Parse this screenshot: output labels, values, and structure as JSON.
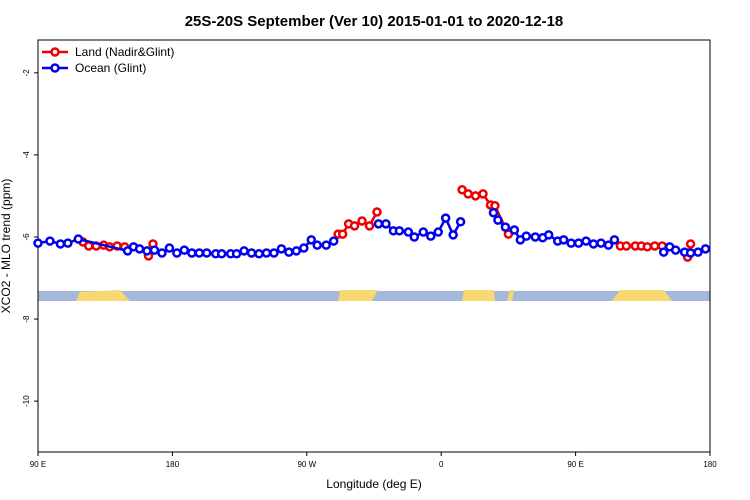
{
  "chart_data": {
    "type": "line",
    "title": "25S-20S September (Ver 10)   2015-01-01 to 2020-12-18",
    "x_label": "Longitude (deg E)",
    "y_label": "XCO2 - MLO trend (ppm)",
    "xlim": [
      90,
      540
    ],
    "ylim": [
      -11.24,
      -1.2
    ],
    "xticks": [
      {
        "value": 90,
        "label": "90 E"
      },
      180,
      {
        "value": 270,
        "label": "90 W"
      },
      {
        "value": 360,
        "label": "0"
      },
      {
        "value": 450,
        "label": "90 E"
      },
      {
        "value": 540,
        "label": "180"
      }
    ],
    "yticks": [
      -2,
      -4,
      -6,
      -8,
      -10
    ],
    "legend": "top-left",
    "series": [
      {
        "name": "Land (Nadir&Glint)",
        "color": "#ee0000",
        "x": [
          120,
          124,
          129,
          134,
          138,
          143,
          148,
          156,
          164,
          167,
          229,
          291,
          294,
          298,
          302,
          307,
          312,
          317,
          345,
          374,
          378,
          383,
          388,
          393,
          396,
          405,
          442,
          480,
          484,
          490,
          494,
          498,
          503,
          508,
          516,
          525,
          527
        ],
        "values": [
          -6.12,
          -6.22,
          -6.22,
          -6.2,
          -6.24,
          -6.22,
          -6.24,
          null,
          -6.46,
          -6.17,
          null,
          -5.93,
          -5.93,
          -5.68,
          -5.73,
          -5.61,
          -5.73,
          -5.39,
          null,
          -4.85,
          -4.95,
          -5.0,
          -4.95,
          -5.22,
          -5.24,
          -5.93,
          null,
          -6.22,
          -6.22,
          -6.22,
          -6.22,
          -6.24,
          -6.22,
          -6.22,
          null,
          -6.49,
          -6.17
        ]
      },
      {
        "name": "Ocean (Glint)",
        "color": "#0000ee",
        "x": [
          90,
          98,
          105,
          110,
          117,
          150,
          154,
          158,
          163,
          168,
          173,
          178,
          183,
          188,
          193,
          198,
          203,
          209,
          213,
          219,
          223,
          228,
          233,
          238,
          243,
          248,
          253,
          258,
          263,
          268,
          273,
          277,
          283,
          288,
          303,
          318,
          323,
          328,
          332,
          338,
          342,
          348,
          353,
          358,
          363,
          368,
          373,
          384,
          395,
          398,
          403,
          409,
          413,
          417,
          423,
          428,
          432,
          438,
          442,
          447,
          452,
          457,
          462,
          467,
          472,
          476,
          492,
          509,
          513,
          517,
          523,
          527,
          532,
          537
        ],
        "values": [
          -6.15,
          -6.1,
          -6.17,
          -6.15,
          -6.05,
          -6.34,
          -6.24,
          -6.29,
          -6.34,
          -6.32,
          -6.39,
          -6.27,
          -6.39,
          -6.32,
          -6.39,
          -6.39,
          -6.39,
          -6.41,
          -6.41,
          -6.41,
          -6.41,
          -6.34,
          -6.39,
          -6.41,
          -6.39,
          -6.39,
          -6.29,
          -6.37,
          -6.34,
          -6.27,
          -6.07,
          -6.2,
          -6.2,
          -6.1,
          null,
          -5.68,
          -5.68,
          -5.85,
          -5.85,
          -5.88,
          -6.0,
          -5.88,
          -5.98,
          -5.88,
          -5.54,
          -5.95,
          -5.63,
          null,
          -5.41,
          -5.59,
          -5.76,
          -5.83,
          -6.07,
          -5.98,
          -6.0,
          -6.02,
          -5.95,
          -6.1,
          -6.07,
          -6.15,
          -6.15,
          -6.1,
          -6.17,
          -6.15,
          -6.2,
          -6.07,
          null,
          -6.37,
          -6.24,
          -6.32,
          -6.37,
          -6.39,
          -6.37,
          -6.29
        ]
      }
    ]
  }
}
